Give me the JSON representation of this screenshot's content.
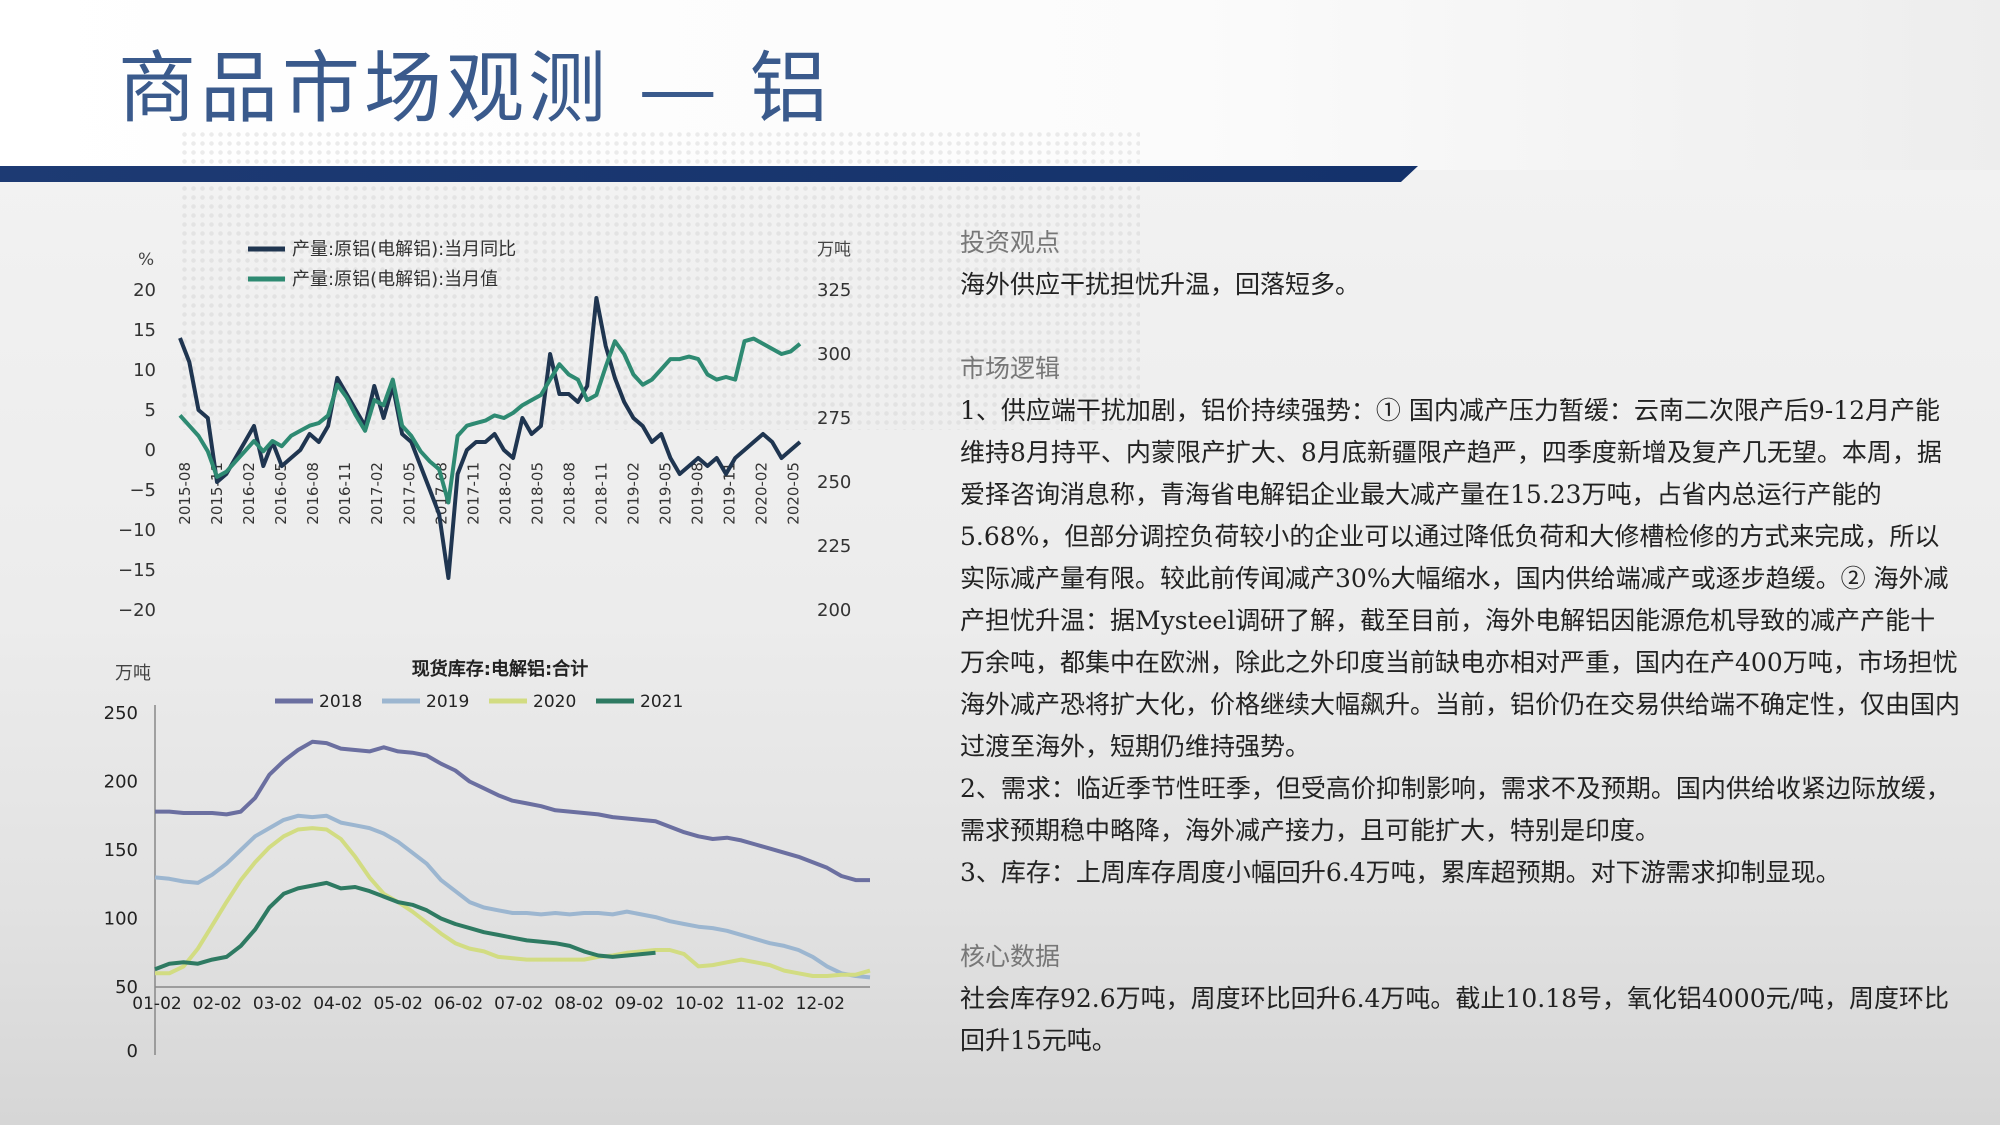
{
  "page": {
    "title": "商品市场观测 — 铝"
  },
  "right": {
    "investment": {
      "title": "投资观点",
      "text": "海外供应干扰担忧升温，回落短多。"
    },
    "logic": {
      "title": "市场逻辑",
      "p1": "1、供应端干扰加剧，铝价持续强势：① 国内减产压力暂缓：云南二次限产后9-12月产能维持8月持平、内蒙限产扩大、8月底新疆限产趋严，四季度新增及复产几无望。本周，据爱择咨询消息称，青海省电解铝企业最大减产量在15.23万吨，占省内总运行产能的5.68%，但部分调控负荷较小的企业可以通过降低负荷和大修槽检修的方式来完成，所以实际减产量有限。较此前传闻减产30%大幅缩水，国内供给端减产或逐步趋缓。② 海外减产担忧升温：据Mysteel调研了解，截至目前，海外电解铝因能源危机导致的减产产能十万余吨，都集中在欧洲，除此之外印度当前缺电亦相对严重，国内在产400万吨，市场担忧海外减产恐将扩大化，价格继续大幅飙升。当前，铝价仍在交易供给端不确定性，仅由国内过渡至海外，短期仍维持强势。",
      "p2": "2、需求：临近季节性旺季，但受高价抑制影响，需求不及预期。国内供给收紧边际放缓，需求预期稳中略降，海外减产接力，且可能扩大，特别是印度。",
      "p3": "3、库存：上周库存周度小幅回升6.4万吨，累库超预期。对下游需求抑制显现。"
    },
    "core": {
      "title": "核心数据",
      "text": "社会库存92.6万吨，周度环比回升6.4万吨。截止10.18号，氧化铝4000元/吨，周度环比回升15元吨。"
    }
  },
  "chart_data": [
    {
      "type": "line",
      "title": "",
      "y_left_unit": "%",
      "y_right_unit": "万吨",
      "y_left_ticks": [
        20,
        15,
        10,
        5,
        0,
        -5,
        -10,
        -15,
        -20
      ],
      "y_right_ticks": [
        325,
        300,
        275,
        250,
        225,
        200
      ],
      "ylim_left": [
        -20,
        20
      ],
      "ylim_right": [
        200,
        325
      ],
      "x_tick_labels": [
        "2015-08",
        "2015-11",
        "2016-02",
        "2016-05",
        "2016-08",
        "2016-11",
        "2017-02",
        "2017-05",
        "2017-08",
        "2017-11",
        "2018-02",
        "2018-05",
        "2018-08",
        "2018-11",
        "2019-02",
        "2019-05",
        "2019-08",
        "2019-11",
        "2020-02",
        "2020-05"
      ],
      "series": [
        {
          "name": "产量:原铝(电解铝):当月同比",
          "axis": "left",
          "color": "#1f3550",
          "values": [
            14,
            11,
            5,
            4,
            -4,
            -3,
            -1,
            1,
            3,
            -2,
            1,
            -2,
            -1,
            0,
            2,
            1,
            3,
            9,
            7,
            5,
            3,
            8,
            4,
            8,
            2,
            1,
            -2,
            -5,
            -8,
            -16,
            -3,
            0,
            1,
            1,
            2,
            0,
            -1,
            4,
            2,
            3,
            12,
            7,
            7,
            6,
            8,
            19,
            13,
            9,
            6,
            4,
            3,
            1,
            2,
            -1,
            -3,
            -2,
            -1,
            -2,
            -1,
            -3,
            -1,
            0,
            1,
            2,
            1,
            -1,
            0,
            1
          ],
          "i_len": 59
        },
        {
          "name": "产量:原铝(电解铝):当月值",
          "axis": "right",
          "color": "#2e8a72",
          "values": [
            276,
            272,
            268,
            262,
            252,
            254,
            258,
            262,
            266,
            262,
            266,
            264,
            268,
            270,
            272,
            273,
            276,
            288,
            283,
            276,
            270,
            282,
            280,
            290,
            272,
            268,
            262,
            258,
            255,
            242,
            268,
            272,
            273,
            274,
            276,
            275,
            277,
            280,
            282,
            284,
            290,
            296,
            292,
            290,
            282,
            284,
            295,
            305,
            300,
            292,
            288,
            290,
            294,
            298,
            298,
            299,
            298,
            292,
            290,
            291,
            290,
            305,
            306,
            304,
            302,
            300,
            301,
            304
          ]
        }
      ]
    },
    {
      "type": "line",
      "title": "现货库存:电解铝:合计",
      "ylabel": "万吨",
      "y_ticks": [
        250,
        200,
        150,
        100,
        50,
        0
      ],
      "ylim": [
        50,
        250
      ],
      "x_tick_labels": [
        "01-02",
        "02-02",
        "03-02",
        "04-02",
        "05-02",
        "06-02",
        "07-02",
        "08-02",
        "09-02",
        "10-02",
        "11-02",
        "12-02"
      ],
      "series": [
        {
          "name": "2018",
          "color": "#6b6fa0",
          "values": [
            178,
            178,
            177,
            177,
            177,
            176,
            178,
            188,
            205,
            215,
            223,
            229,
            228,
            224,
            223,
            222,
            225,
            222,
            221,
            219,
            213,
            208,
            200,
            195,
            190,
            186,
            184,
            182,
            179,
            178,
            177,
            176,
            174,
            173,
            172,
            171,
            167,
            163,
            160,
            158,
            159,
            157,
            154,
            151,
            148,
            145,
            141,
            137,
            131,
            128,
            128
          ]
        },
        {
          "name": "2019",
          "color": "#9cb6d0",
          "values": [
            130,
            129,
            127,
            126,
            132,
            140,
            150,
            160,
            166,
            172,
            175,
            174,
            175,
            170,
            168,
            166,
            162,
            156,
            148,
            140,
            128,
            120,
            112,
            108,
            106,
            104,
            104,
            103,
            104,
            103,
            104,
            104,
            103,
            105,
            103,
            101,
            98,
            96,
            94,
            93,
            91,
            88,
            85,
            82,
            80,
            77,
            72,
            65,
            60,
            58,
            57
          ]
        },
        {
          "name": "2020",
          "color": "#d2dc82",
          "values": [
            60,
            60,
            65,
            78,
            95,
            112,
            128,
            141,
            152,
            160,
            165,
            166,
            165,
            158,
            145,
            130,
            118,
            112,
            105,
            97,
            89,
            82,
            78,
            76,
            72,
            71,
            70,
            70,
            70,
            70,
            70,
            72,
            73,
            75,
            76,
            77,
            77,
            74,
            65,
            66,
            68,
            70,
            68,
            66,
            62,
            60,
            58,
            58,
            59,
            59,
            62
          ]
        },
        {
          "name": "2021",
          "color": "#2e7a62",
          "values": [
            63,
            67,
            68,
            67,
            70,
            72,
            80,
            92,
            108,
            118,
            122,
            124,
            126,
            122,
            123,
            120,
            116,
            112,
            110,
            106,
            100,
            96,
            93,
            90,
            88,
            86,
            84,
            83,
            82,
            80,
            76,
            73,
            72,
            73,
            74,
            75
          ]
        }
      ]
    }
  ]
}
